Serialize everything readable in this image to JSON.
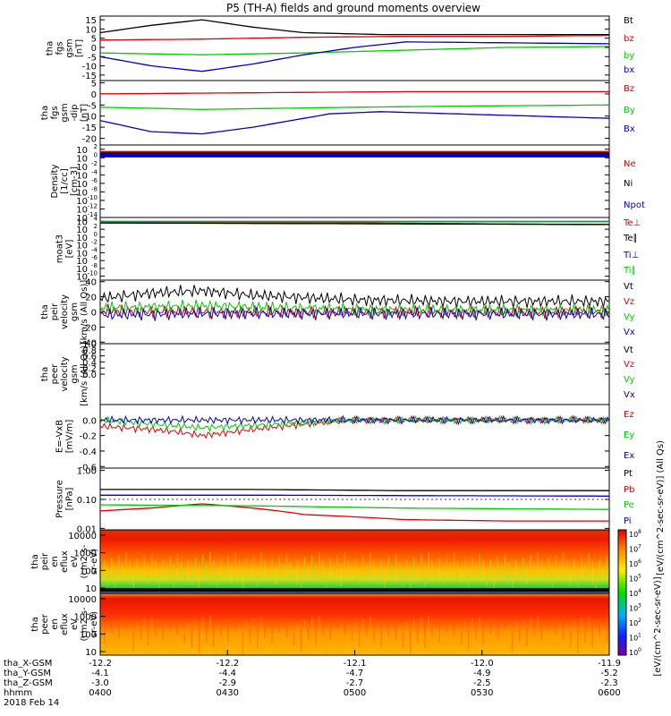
{
  "title": "P5 (TH-A) fields and ground moments overview",
  "chart_data": [
    {
      "type": "line",
      "panel_label": [
        "tha",
        "fgs",
        "gsm",
        "[nT]"
      ],
      "ylim": [
        -18,
        17
      ],
      "yticks": [
        15,
        10,
        5,
        0,
        -5,
        -10,
        -15
      ],
      "series": [
        {
          "name": "Bt",
          "color": "#000000",
          "x": [
            0,
            0.1,
            0.2,
            0.3,
            0.4,
            0.55,
            0.7,
            0.85,
            1
          ],
          "y": [
            8,
            12,
            15,
            11,
            8,
            7,
            7,
            7,
            7
          ]
        },
        {
          "name": "bz",
          "color": "#dd0000",
          "x": [
            0,
            0.2,
            0.4,
            0.6,
            0.8,
            1
          ],
          "y": [
            4,
            4.5,
            5.5,
            6,
            6,
            6.5
          ]
        },
        {
          "name": "by",
          "color": "#00cc00",
          "x": [
            0,
            0.2,
            0.4,
            0.6,
            0.8,
            1
          ],
          "y": [
            -3,
            -4,
            -3,
            -1.5,
            0,
            0.5
          ]
        },
        {
          "name": "bx",
          "color": "#0000cc",
          "x": [
            0,
            0.1,
            0.2,
            0.3,
            0.4,
            0.5,
            0.6,
            0.8,
            1
          ],
          "y": [
            -5,
            -10,
            -13,
            -9,
            -4,
            0,
            3,
            2.5,
            2
          ]
        }
      ]
    },
    {
      "type": "line",
      "panel_label": [
        "tha",
        "fgs",
        "gsm",
        "-dip",
        "[nT]"
      ],
      "ylim": [
        -23,
        6
      ],
      "yticks": [
        5,
        0,
        -5,
        -10,
        -15,
        -20
      ],
      "series": [
        {
          "name": "Bz",
          "color": "#dd0000",
          "x": [
            0,
            0.3,
            0.6,
            1
          ],
          "y": [
            0,
            0.5,
            1,
            1
          ]
        },
        {
          "name": "By",
          "color": "#00cc00",
          "x": [
            0,
            0.2,
            0.5,
            0.7,
            1
          ],
          "y": [
            -6,
            -7,
            -6,
            -5.5,
            -5
          ]
        },
        {
          "name": "Bx",
          "color": "#0000cc",
          "x": [
            0,
            0.1,
            0.2,
            0.3,
            0.45,
            0.55,
            0.7,
            0.85,
            1
          ],
          "y": [
            -12,
            -17,
            -18,
            -15,
            -9,
            -8,
            -9,
            -10,
            -11
          ]
        }
      ]
    },
    {
      "type": "line",
      "panel_label": [
        "Density",
        "[1/cc]",
        "[cm-3]"
      ],
      "yscale": "log",
      "ylim": [
        -14,
        3
      ],
      "yticks": [
        2,
        0,
        -2,
        -4,
        -6,
        -8,
        -10,
        -12,
        -14
      ],
      "series": [
        {
          "name": "Ne",
          "color": "#dd0000",
          "x": [
            0,
            1
          ],
          "y": [
            1.2,
            1.2
          ]
        },
        {
          "name": "Ni",
          "color": "#000000",
          "x": [
            0,
            1
          ],
          "y": [
            0.8,
            0.8
          ]
        },
        {
          "name": "Npot",
          "color": "#0000cc",
          "x": [
            0,
            1
          ],
          "y": [
            0.5,
            0.5
          ]
        }
      ]
    },
    {
      "type": "line",
      "panel_label": [
        "moat3",
        "[eV]"
      ],
      "yscale": "log",
      "ylim": [
        -11,
        5
      ],
      "yticks": [
        4,
        2,
        0,
        -2,
        -4,
        -6,
        -8,
        -10
      ],
      "series": [
        {
          "name": "Te⊥",
          "color": "#dd0000",
          "x": [
            0,
            0.5,
            1
          ],
          "y": [
            3.8,
            3.6,
            3.2
          ]
        },
        {
          "name": "Te∥",
          "color": "#000000",
          "x": [
            0,
            1
          ],
          "y": [
            3.6,
            3.2
          ]
        },
        {
          "name": "Ti⊥",
          "color": "#0000cc",
          "x": [
            0,
            1
          ],
          "y": [
            4,
            4
          ]
        },
        {
          "name": "Ti∥",
          "color": "#00cc00",
          "x": [
            0,
            1
          ],
          "y": [
            3.9,
            3.9
          ]
        }
      ]
    },
    {
      "type": "line",
      "panel_label": [
        "tha",
        "peir",
        "velocity",
        "gsm",
        "[km/s (All Qs)]"
      ],
      "ylim": [
        -42,
        42
      ],
      "yticks": [
        40,
        20,
        0,
        -20,
        -40
      ],
      "series": [
        {
          "name": "Vt",
          "color": "#000000",
          "x": [
            0,
            0.1,
            0.2,
            0.3,
            0.5,
            0.7,
            1
          ],
          "y": [
            18,
            25,
            28,
            22,
            16,
            14,
            14
          ]
        },
        {
          "name": "Vz",
          "color": "#dd0000",
          "x": [
            0,
            0.2,
            0.5,
            1
          ],
          "y": [
            2,
            0,
            0,
            0
          ]
        },
        {
          "name": "Vy",
          "color": "#00cc00",
          "x": [
            0,
            0.2,
            0.5,
            1
          ],
          "y": [
            5,
            8,
            3,
            2
          ]
        },
        {
          "name": "Vx",
          "color": "#0000cc",
          "x": [
            0,
            0.2,
            0.5,
            1
          ],
          "y": [
            -4,
            -2,
            -2,
            -3
          ]
        }
      ]
    },
    {
      "type": "line",
      "panel_label": [
        "tha",
        "peer",
        "velocity",
        "gsm",
        "[km/s (All Qs)]"
      ],
      "ylim": [
        -1,
        1
      ],
      "yticks": [
        1.0,
        0.8,
        0.6,
        0.4,
        0.2,
        0.0
      ],
      "series": [
        {
          "name": "Vt",
          "color": "#000000",
          "x": [],
          "y": []
        },
        {
          "name": "Vz",
          "color": "#dd0000",
          "x": [],
          "y": []
        },
        {
          "name": "Vy",
          "color": "#00cc00",
          "x": [],
          "y": []
        },
        {
          "name": "Vx",
          "color": "#0000cc",
          "x": [],
          "y": []
        }
      ]
    },
    {
      "type": "line",
      "panel_label": [
        "E=-VxB",
        "[mV/m]"
      ],
      "ylim": [
        -0.62,
        0.2
      ],
      "yticks": [
        0.0,
        -0.2,
        -0.4,
        -0.6
      ],
      "series": [
        {
          "name": "Ez",
          "color": "#dd0000",
          "x": [
            0,
            0.05,
            0.1,
            0.15,
            0.2,
            0.3,
            0.4,
            0.5,
            1
          ],
          "y": [
            -0.08,
            -0.1,
            -0.12,
            -0.15,
            -0.2,
            -0.12,
            -0.05,
            0,
            0
          ]
        },
        {
          "name": "Ey",
          "color": "#00cc00",
          "x": [
            0,
            0.2,
            0.5,
            1
          ],
          "y": [
            0,
            -0.1,
            0,
            0
          ]
        },
        {
          "name": "Ex",
          "color": "#0000cc",
          "x": [
            0,
            0.5,
            1
          ],
          "y": [
            0,
            0,
            0
          ]
        }
      ]
    },
    {
      "type": "line",
      "panel_label": [
        "Pressure",
        "[nPa]"
      ],
      "yscale": "log",
      "ylim": [
        -2.05,
        0.08
      ],
      "yticks": [
        1.0,
        0.1,
        0.01
      ],
      "ytick_labels": [
        "1.00",
        "0.10",
        "0.01"
      ],
      "side_label": "[eV/(cm^2-sec-sr-eV)] (All Qs)",
      "series": [
        {
          "name": "Pt",
          "color": "#000000",
          "x": [
            0,
            0.3,
            0.6,
            1
          ],
          "y": [
            0.22,
            0.22,
            0.2,
            0.2
          ]
        },
        {
          "name": "Pb",
          "color": "#dd0000",
          "x": [
            0,
            0.1,
            0.2,
            0.3,
            0.4,
            0.6,
            0.8,
            1
          ],
          "y": [
            0.04,
            0.05,
            0.07,
            0.05,
            0.03,
            0.02,
            0.018,
            0.018
          ]
        },
        {
          "name": "Pe",
          "color": "#00cc00",
          "x": [
            0,
            0.3,
            0.6,
            1
          ],
          "y": [
            0.065,
            0.06,
            0.05,
            0.045
          ]
        },
        {
          "name": "Pi",
          "color": "#0000cc",
          "x": [
            0,
            0.3,
            0.6,
            1
          ],
          "y": [
            0.14,
            0.14,
            0.135,
            0.13
          ]
        }
      ]
    },
    {
      "type": "heatmap",
      "panel_label": [
        "tha",
        "peir",
        "en",
        "eflux",
        "eV",
        "(cm2-s-",
        "sr-eV)"
      ],
      "yscale": "log",
      "yticks": [
        10000,
        1000,
        100,
        10
      ],
      "ylim_log": [
        0.7,
        4.3
      ]
    },
    {
      "type": "heatmap",
      "panel_label": [
        "tha",
        "peer",
        "en",
        "eflux",
        "eV",
        "(cm2-s-",
        "sr-eV)"
      ],
      "yscale": "log",
      "yticks": [
        10000,
        1000,
        100,
        10
      ],
      "ylim_log": [
        0.8,
        4.3
      ]
    }
  ],
  "colorbar": {
    "ticks": [
      "10^8",
      "10^7",
      "10^6",
      "10^5",
      "10^4",
      "10^3",
      "10^2",
      "10^1",
      "10^0"
    ],
    "label": "[eV/(cm^2-sec-sr-eV)]"
  },
  "xaxis": {
    "rows": [
      {
        "name": "tha_X-GSM",
        "values": [
          "-12.2",
          "-12.2",
          "-12.1",
          "-12.0",
          "-11.9"
        ]
      },
      {
        "name": "tha_Y-GSM",
        "values": [
          "-4.1",
          "-4.4",
          "-4.7",
          "-4.9",
          "-5.2"
        ]
      },
      {
        "name": "tha_Z-GSM",
        "values": [
          "-3.0",
          "-2.9",
          "-2.7",
          "-2.5",
          "-2.3"
        ]
      },
      {
        "name": "hhmm",
        "values": [
          "0400",
          "0430",
          "0500",
          "0530",
          "0600"
        ]
      }
    ],
    "date": "2018 Feb 14"
  }
}
